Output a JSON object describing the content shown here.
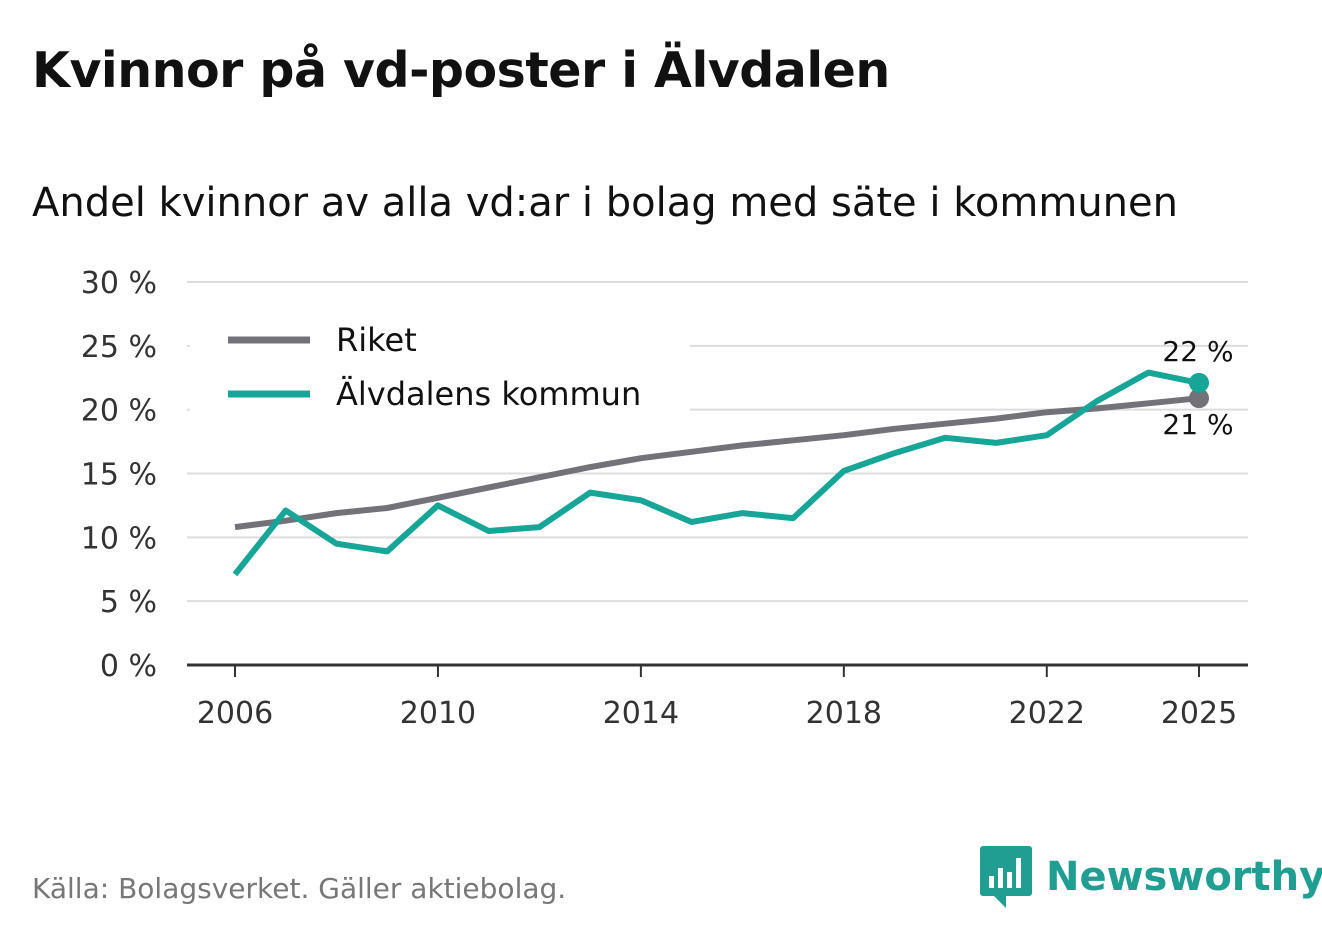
{
  "header": {
    "title": "Kvinnor på vd-poster i Älvdalen",
    "subtitle": "Andel kvinnor av alla vd:ar i bolag med säte i kommunen"
  },
  "footer": {
    "source": "Källa: Bolagsverket. Gäller aktiebolag.",
    "brand": "Newsworthy"
  },
  "colors": {
    "riket": "#737278",
    "kommun": "#16a596",
    "grid": "#dddddd",
    "axis": "#333333",
    "brand": "#1f9e91"
  },
  "chart_data": {
    "type": "line",
    "x": [
      2006,
      2007,
      2008,
      2009,
      2010,
      2011,
      2012,
      2013,
      2014,
      2015,
      2016,
      2017,
      2018,
      2019,
      2020,
      2021,
      2022,
      2023,
      2024,
      2025
    ],
    "series": [
      {
        "name": "Riket",
        "color": "#737278",
        "values": [
          10.8,
          11.3,
          11.9,
          12.3,
          13.1,
          13.9,
          14.7,
          15.5,
          16.2,
          16.7,
          17.2,
          17.6,
          18.0,
          18.5,
          18.9,
          19.3,
          19.8,
          20.1,
          20.5,
          20.9
        ]
      },
      {
        "name": "Älvdalens kommun",
        "color": "#16a596",
        "values": [
          7.1,
          12.1,
          9.5,
          8.9,
          12.5,
          10.5,
          10.8,
          13.5,
          12.9,
          11.2,
          11.9,
          11.5,
          15.2,
          16.6,
          17.8,
          17.4,
          18.0,
          20.7,
          22.9,
          22.1
        ]
      }
    ],
    "title": "Kvinnor på vd-poster i Älvdalen",
    "subtitle": "Andel kvinnor av alla vd:ar i bolag med säte i kommunen",
    "xlabel": "",
    "ylabel": "",
    "ylim": [
      0,
      30
    ],
    "xlim": [
      2006,
      2025
    ],
    "yticks": [
      0,
      5,
      10,
      15,
      20,
      25,
      30
    ],
    "ytick_labels": [
      "0 %",
      "5 %",
      "10 %",
      "15 %",
      "20 %",
      "25 %",
      "30 %"
    ],
    "xticks": [
      2006,
      2010,
      2014,
      2018,
      2022,
      2025
    ],
    "xtick_labels": [
      "2006",
      "2010",
      "2014",
      "2018",
      "2022",
      "2025"
    ],
    "end_labels": [
      {
        "series": "Älvdalens kommun",
        "text": "22 %"
      },
      {
        "series": "Riket",
        "text": "21 %"
      }
    ],
    "legend": "top-left",
    "grid": true
  }
}
